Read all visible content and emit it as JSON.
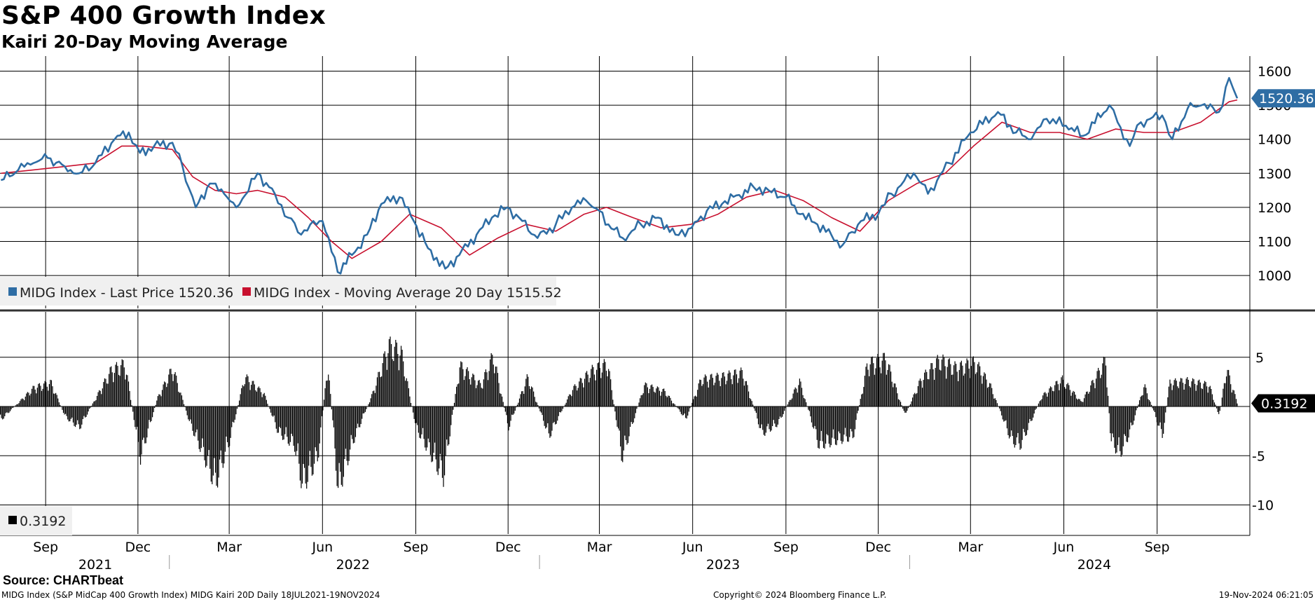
{
  "title": "S&P 400 Growth Index",
  "subtitle": "Kairi 20-Day Moving Average",
  "source": "Source: CHARTbeat",
  "footer": {
    "left": "MIDG Index (S&P MidCap 400 Growth Index) MIDG Kairi 20D  Daily 18JUL2021-19NOV2024",
    "center": "Copyright© 2024 Bloomberg Finance L.P.",
    "right": "19-Nov-2024 06:21:05"
  },
  "colors": {
    "price": "#2e6da4",
    "ma": "#c8102e",
    "kairi": "#000000",
    "grid": "#000000",
    "label_bg_price": "#2e6da4",
    "label_bg_kairi": "#000000"
  },
  "chart_data": [
    {
      "type": "line",
      "title": "S&P 400 Growth Index",
      "x_tick_labels": [
        "Sep",
        "Dec",
        "Mar",
        "Jun",
        "Sep",
        "Dec",
        "Mar",
        "Jun",
        "Sep",
        "Dec",
        "Mar",
        "Jun",
        "Sep"
      ],
      "year_labels": [
        "2021",
        "2022",
        "2023",
        "2024"
      ],
      "y_ticks": [
        1000,
        1100,
        1200,
        1300,
        1400,
        1500,
        1600
      ],
      "ylim": [
        910,
        1620
      ],
      "legend": [
        {
          "label": "MIDG Index - Last Price 1520.36",
          "color": "#2e6da4"
        },
        {
          "label": "MIDG Index - Moving Average 20 Day 1515.52",
          "color": "#c8102e"
        }
      ],
      "last_value_label": "1520.36",
      "series": [
        {
          "name": "MIDG Index - Last Price",
          "x": [
            "2021-07-19",
            "2021-08-05",
            "2021-08-20",
            "2021-09-03",
            "2021-09-20",
            "2021-10-04",
            "2021-10-20",
            "2021-11-08",
            "2021-11-22",
            "2021-12-03",
            "2021-12-17",
            "2022-01-04",
            "2022-01-14",
            "2022-01-27",
            "2022-02-10",
            "2022-02-24",
            "2022-03-08",
            "2022-03-29",
            "2022-04-15",
            "2022-04-28",
            "2022-05-11",
            "2022-05-20",
            "2022-06-01",
            "2022-06-16",
            "2022-06-30",
            "2022-07-15",
            "2022-07-29",
            "2022-08-16",
            "2022-08-30",
            "2022-09-13",
            "2022-09-30",
            "2022-10-14",
            "2022-10-31",
            "2022-11-15",
            "2022-11-30",
            "2022-12-15",
            "2022-12-30",
            "2023-01-17",
            "2023-02-02",
            "2023-02-16",
            "2023-03-01",
            "2023-03-10",
            "2023-03-24",
            "2023-04-11",
            "2023-04-28",
            "2023-05-15",
            "2023-05-31",
            "2023-06-15",
            "2023-06-30",
            "2023-07-31",
            "2023-08-15",
            "2023-09-01",
            "2023-09-15",
            "2023-10-02",
            "2023-10-27",
            "2023-11-14",
            "2023-12-01",
            "2023-12-14",
            "2024-01-05",
            "2024-01-19",
            "2024-02-09",
            "2024-03-01",
            "2024-03-28",
            "2024-04-15",
            "2024-04-30",
            "2024-05-15",
            "2024-06-03",
            "2024-06-20",
            "2024-07-16",
            "2024-07-24",
            "2024-08-05",
            "2024-08-16",
            "2024-09-06",
            "2024-09-16",
            "2024-10-01",
            "2024-10-15",
            "2024-11-01",
            "2024-11-11",
            "2024-11-19"
          ],
          "y": [
            1280,
            1310,
            1330,
            1345,
            1320,
            1300,
            1330,
            1400,
            1420,
            1360,
            1380,
            1390,
            1320,
            1200,
            1270,
            1240,
            1200,
            1300,
            1240,
            1170,
            1120,
            1150,
            1160,
            1010,
            1060,
            1120,
            1210,
            1230,
            1160,
            1080,
            1020,
            1060,
            1120,
            1170,
            1200,
            1160,
            1110,
            1150,
            1200,
            1220,
            1190,
            1150,
            1110,
            1150,
            1170,
            1120,
            1140,
            1190,
            1210,
            1260,
            1250,
            1230,
            1180,
            1150,
            1090,
            1160,
            1180,
            1240,
            1300,
            1240,
            1330,
            1420,
            1480,
            1420,
            1400,
            1460,
            1440,
            1410,
            1500,
            1450,
            1380,
            1450,
            1470,
            1400,
            1490,
            1500,
            1480,
            1580,
            1520.36
          ]
        },
        {
          "name": "MIDG Index - Moving Average 20 Day",
          "x": [
            "2021-07-19",
            "2021-08-20",
            "2021-09-20",
            "2021-10-20",
            "2021-11-15",
            "2021-12-06",
            "2022-01-04",
            "2022-01-24",
            "2022-02-15",
            "2022-03-08",
            "2022-03-29",
            "2022-04-25",
            "2022-05-18",
            "2022-06-10",
            "2022-06-30",
            "2022-07-29",
            "2022-08-26",
            "2022-09-26",
            "2022-10-24",
            "2022-11-21",
            "2022-12-19",
            "2023-01-17",
            "2023-02-14",
            "2023-03-08",
            "2023-04-03",
            "2023-05-01",
            "2023-05-30",
            "2023-06-26",
            "2023-07-24",
            "2023-08-21",
            "2023-09-18",
            "2023-10-16",
            "2023-11-13",
            "2023-12-11",
            "2024-01-08",
            "2024-02-05",
            "2024-03-04",
            "2024-04-01",
            "2024-04-29",
            "2024-05-28",
            "2024-06-24",
            "2024-07-22",
            "2024-08-19",
            "2024-09-16",
            "2024-10-14",
            "2024-11-11",
            "2024-11-19"
          ],
          "y": [
            1300,
            1310,
            1320,
            1330,
            1380,
            1380,
            1370,
            1290,
            1250,
            1240,
            1250,
            1230,
            1170,
            1100,
            1050,
            1100,
            1180,
            1140,
            1060,
            1110,
            1150,
            1130,
            1180,
            1200,
            1170,
            1140,
            1150,
            1180,
            1230,
            1250,
            1220,
            1170,
            1130,
            1220,
            1270,
            1300,
            1380,
            1450,
            1420,
            1420,
            1400,
            1430,
            1420,
            1420,
            1450,
            1510,
            1515.52
          ]
        }
      ]
    },
    {
      "type": "bar",
      "title": "MIDG Kairi 20D",
      "y_ticks": [
        5,
        -5,
        -10
      ],
      "ylim": [
        -12.5,
        9.5
      ],
      "legend": [
        {
          "label": "0.3192",
          "color": "#000000"
        }
      ],
      "last_value_label": "0.3192",
      "series": [
        {
          "name": "MIDG Kairi 20D",
          "x": [
            "2021-07-19",
            "2021-08-20",
            "2021-09-06",
            "2021-09-20",
            "2021-10-04",
            "2021-11-04",
            "2021-11-18",
            "2021-12-03",
            "2021-12-20",
            "2022-01-04",
            "2022-01-21",
            "2022-02-03",
            "2022-02-15",
            "2022-03-01",
            "2022-03-16",
            "2022-04-04",
            "2022-04-18",
            "2022-05-04",
            "2022-05-12",
            "2022-05-27",
            "2022-06-06",
            "2022-06-16",
            "2022-07-01",
            "2022-07-20",
            "2022-08-05",
            "2022-08-17",
            "2022-09-01",
            "2022-09-13",
            "2022-09-28",
            "2022-10-14",
            "2022-11-04",
            "2022-11-16",
            "2022-12-01",
            "2022-12-20",
            "2023-01-10",
            "2023-02-02",
            "2023-02-21",
            "2023-03-09",
            "2023-03-23",
            "2023-04-14",
            "2023-05-04",
            "2023-05-25",
            "2023-06-09",
            "2023-06-30",
            "2023-07-20",
            "2023-08-08",
            "2023-08-24",
            "2023-09-14",
            "2023-10-03",
            "2023-10-26",
            "2023-11-06",
            "2023-11-20",
            "2023-12-08",
            "2023-12-27",
            "2024-01-12",
            "2024-01-30",
            "2024-02-16",
            "2024-03-05",
            "2024-03-20",
            "2024-04-10",
            "2024-04-19",
            "2024-05-10",
            "2024-05-30",
            "2024-06-18",
            "2024-07-12",
            "2024-07-17",
            "2024-07-26",
            "2024-08-05",
            "2024-08-19",
            "2024-09-06",
            "2024-09-13",
            "2024-10-01",
            "2024-10-22",
            "2024-11-01",
            "2024-11-08",
            "2024-11-19"
          ],
          "y": [
            -1.5,
            2.2,
            2.8,
            -1.2,
            -2.5,
            4.2,
            5.0,
            -6.0,
            1.0,
            4.5,
            -2.0,
            -5.5,
            -9.0,
            -4.0,
            3.5,
            1.5,
            -3.0,
            -4.5,
            -9.2,
            -6.0,
            5.0,
            -9.8,
            -4.0,
            1.5,
            7.2,
            6.5,
            -2.5,
            -5.0,
            -8.2,
            4.8,
            2.5,
            6.0,
            -2.5,
            3.5,
            -3.5,
            2.0,
            4.2,
            5.0,
            -6.0,
            2.5,
            1.8,
            -1.5,
            3.2,
            3.5,
            4.0,
            -3.2,
            -2.0,
            3.0,
            -4.5,
            -3.8,
            -3.5,
            5.0,
            5.6,
            -1.0,
            3.2,
            5.5,
            4.5,
            5.2,
            2.5,
            -4.0,
            -4.5,
            1.2,
            3.2,
            0.5,
            5.5,
            -4.0,
            -5.5,
            -3.0,
            2.5,
            -3.5,
            2.8,
            3.0,
            2.5,
            -1.2,
            4.5,
            0.3192
          ]
        }
      ]
    }
  ]
}
